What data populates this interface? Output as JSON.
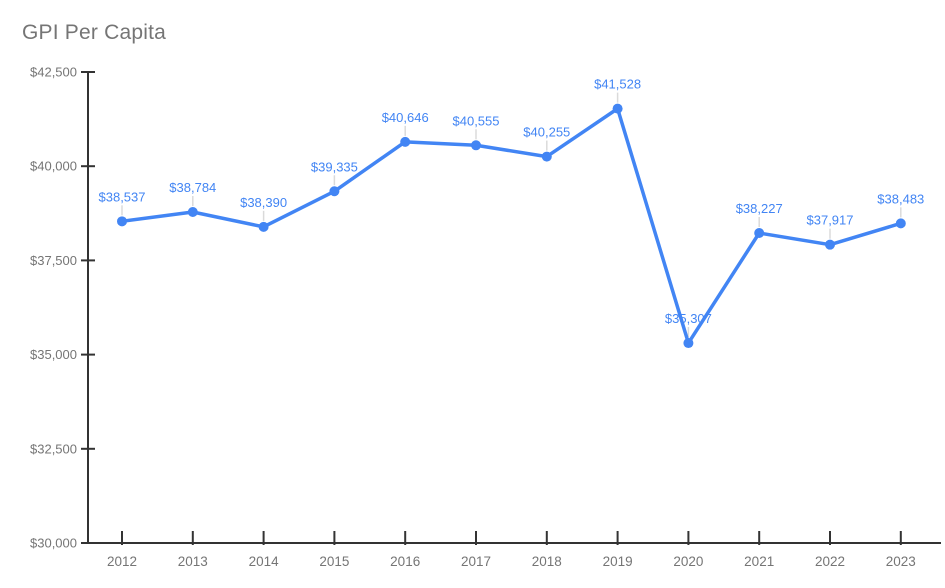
{
  "page": {
    "title": "GPI Per Capita"
  },
  "chart_data": {
    "type": "line",
    "title": "GPI Per Capita",
    "categories": [
      "2012",
      "2013",
      "2014",
      "2015",
      "2016",
      "2017",
      "2018",
      "2019",
      "2020",
      "2021",
      "2022",
      "2023"
    ],
    "series": [
      {
        "name": "GPI Per Capita",
        "values": [
          38537,
          38784,
          38390,
          39335,
          40646,
          40555,
          40255,
          41528,
          35307,
          38227,
          37917,
          38483
        ],
        "point_labels": [
          "$38,537",
          "$38,784",
          "$38,390",
          "$39,335",
          "$40,646",
          "$40,555",
          "$40,255",
          "$41,528",
          "$35,307",
          "$38,227",
          "$37,917",
          "$38,483"
        ]
      }
    ],
    "xlabel": "",
    "ylabel": "",
    "ylim": [
      30000,
      42500
    ],
    "yticks": {
      "values": [
        30000,
        32500,
        35000,
        37500,
        40000,
        42500
      ],
      "labels": [
        "$30,000",
        "$32,500",
        "$35,000",
        "$37,500",
        "$40,000",
        "$42,500"
      ]
    },
    "grid": false,
    "legend": "none",
    "colors": {
      "series": "#4285f4",
      "axis": "#333333",
      "tick_label": "#757575",
      "title": "#757575",
      "leader": "#dadada",
      "background": "#ffffff"
    }
  }
}
